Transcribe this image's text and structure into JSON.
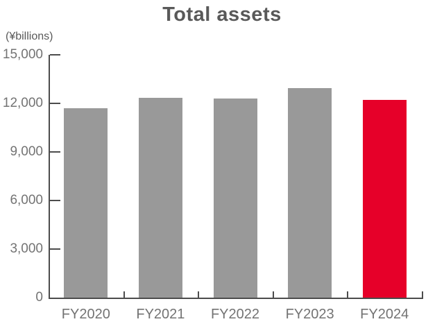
{
  "chart_data": {
    "type": "bar",
    "title": "Total assets",
    "ylabel": "(¥billions)",
    "xlabel": "",
    "categories": [
      "FY2020",
      "FY2021",
      "FY2022",
      "FY2023",
      "FY2024"
    ],
    "values": [
      11700,
      12350,
      12300,
      12950,
      12200
    ],
    "ylim": [
      0,
      15000
    ],
    "yticks": [
      0,
      3000,
      6000,
      9000,
      12000,
      15000
    ],
    "ytick_labels": [
      "0",
      "3,000",
      "6,000",
      "9,000",
      "12,000",
      "15,000"
    ],
    "grid": false,
    "legend": null,
    "highlight_category": "FY2024",
    "colors": {
      "bar_default": "#999999",
      "bar_highlight": "#e60029",
      "axis": "#4c4c4c",
      "tick_text": "#737373",
      "title_text": "#595959",
      "unit_text": "#595959",
      "background": "#ffffff"
    }
  }
}
